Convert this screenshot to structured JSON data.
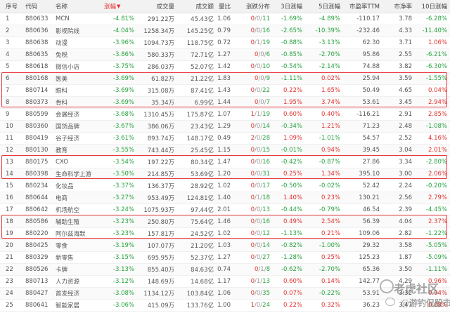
{
  "headers": {
    "no": "序号",
    "code": "代码",
    "name": "名称",
    "change": "涨幅",
    "volume": "成交量",
    "turnover": "成交额",
    "vol_ratio": "量比",
    "distribution": "涨跌分布",
    "change_3d": "3日涨幅",
    "change_5d": "5日涨幅",
    "pe_ttm": "市盈率TTM",
    "pb": "市净率",
    "change_10d": "10日涨幅",
    "sort_indicator": "▼"
  },
  "rows": [
    {
      "no": "1",
      "code": "880633",
      "name": "MCN",
      "change": "-4.81%",
      "volume": "291.22万",
      "turnover": "45.43亿",
      "vol_ratio": "1.06",
      "up": "0",
      "flat": "0",
      "down": "11",
      "c3": "-1.69%",
      "c5": "-4.89%",
      "pe": "-110.17",
      "pb": "3.78",
      "c10": "-6.28%"
    },
    {
      "no": "2",
      "code": "880636",
      "name": "影视院线",
      "change": "-4.04%",
      "volume": "1258.34万",
      "turnover": "145.25亿",
      "vol_ratio": "0.79",
      "up": "0",
      "flat": "0",
      "down": "16",
      "c3": "-2.65%",
      "c5": "-10.39%",
      "pe": "-232.46",
      "pb": "4.33",
      "c10": "-11.40%"
    },
    {
      "no": "3",
      "code": "880638",
      "name": "动漫",
      "change": "-3.96%",
      "volume": "1094.73万",
      "turnover": "118.75亿",
      "vol_ratio": "0.72",
      "up": "0",
      "flat": "1",
      "down": "19",
      "c3": "-0.88%",
      "c5": "-3.13%",
      "pe": "62.30",
      "pb": "3.71",
      "c10": "1.06%"
    },
    {
      "no": "4",
      "code": "880635",
      "name": "免税",
      "change": "-3.86%",
      "volume": "580.33万",
      "turnover": "72.71亿",
      "vol_ratio": "1.27",
      "up": "0",
      "flat": "0",
      "down": "6",
      "c3": "-0.85%",
      "c5": "-2.70%",
      "pe": "95.86",
      "pb": "2.55",
      "c10": "-6.21%"
    },
    {
      "no": "5",
      "code": "880618",
      "name": "微信小店",
      "change": "-3.75%",
      "volume": "286.03万",
      "turnover": "52.07亿",
      "vol_ratio": "1.42",
      "up": "0",
      "flat": "0",
      "down": "10",
      "c3": "-0.54%",
      "c5": "-2.14%",
      "pe": "74.88",
      "pb": "3.82",
      "c10": "-6.30%"
    },
    {
      "no": "6",
      "code": "880168",
      "name": "医美",
      "change": "-3.69%",
      "volume": "61.82万",
      "turnover": "21.22亿",
      "vol_ratio": "1.83",
      "up": "0",
      "flat": "0",
      "down": "9",
      "c3": "-1.11%",
      "c5": "0.02%",
      "pe": "25.94",
      "pb": "3.59",
      "c10": "-1.55%"
    },
    {
      "no": "7",
      "code": "880714",
      "name": "眼科",
      "change": "-3.69%",
      "volume": "315.08万",
      "turnover": "87.41亿",
      "vol_ratio": "1.43",
      "up": "0",
      "flat": "0",
      "down": "22",
      "c3": "0.22%",
      "c5": "1.65%",
      "pe": "50.49",
      "pb": "4.65",
      "c10": "0.04%"
    },
    {
      "no": "8",
      "code": "880373",
      "name": "骨科",
      "change": "-3.69%",
      "volume": "35.34万",
      "turnover": "6.99亿",
      "vol_ratio": "1.44",
      "up": "0",
      "flat": "0",
      "down": "7",
      "c3": "1.95%",
      "c5": "3.74%",
      "pe": "53.61",
      "pb": "3.45",
      "c10": "2.94%"
    },
    {
      "no": "9",
      "code": "880599",
      "name": "会展经济",
      "change": "-3.68%",
      "volume": "1310.45万",
      "turnover": "175.87亿",
      "vol_ratio": "1.07",
      "up": "1",
      "flat": "1",
      "down": "19",
      "c3": "0.60%",
      "c5": "0.40%",
      "pe": "-116.21",
      "pb": "2.91",
      "c10": "2.85%"
    },
    {
      "no": "10",
      "code": "880360",
      "name": "国货品牌",
      "change": "-3.67%",
      "volume": "386.06万",
      "turnover": "23.43亿",
      "vol_ratio": "1.29",
      "up": "0",
      "flat": "0",
      "down": "14",
      "c3": "-0.34%",
      "c5": "1.21%",
      "pe": "71.23",
      "pb": "2.48",
      "c10": "-1.08%"
    },
    {
      "no": "11",
      "code": "880419",
      "name": "谷子经济",
      "change": "-3.61%",
      "volume": "893.74万",
      "turnover": "148.17亿",
      "vol_ratio": "0.49",
      "up": "2",
      "flat": "0",
      "down": "28",
      "c3": "1.09%",
      "c5": "-1.01%",
      "pe": "54.57",
      "pb": "2.52",
      "c10": "4.16%"
    },
    {
      "no": "12",
      "code": "880130",
      "name": "教育",
      "change": "-3.55%",
      "volume": "743.44万",
      "turnover": "25.45亿",
      "vol_ratio": "1.15",
      "up": "0",
      "flat": "0",
      "down": "15",
      "c3": "-0.01%",
      "c5": "0.94%",
      "pe": "39.45",
      "pb": "3.04",
      "c10": "2.01%"
    },
    {
      "no": "13",
      "code": "880175",
      "name": "CXO",
      "change": "-3.54%",
      "volume": "197.22万",
      "turnover": "80.34亿",
      "vol_ratio": "1.47",
      "up": "0",
      "flat": "0",
      "down": "16",
      "c3": "-0.42%",
      "c5": "-0.87%",
      "pe": "27.86",
      "pb": "3.34",
      "c10": "-2.80%"
    },
    {
      "no": "14",
      "code": "880398",
      "name": "生命科学上游",
      "change": "-3.50%",
      "volume": "214.85万",
      "turnover": "53.69亿",
      "vol_ratio": "1.20",
      "up": "0",
      "flat": "0",
      "down": "31",
      "c3": "0.25%",
      "c5": "1.34%",
      "pe": "395.10",
      "pb": "3.00",
      "c10": "2.06%"
    },
    {
      "no": "15",
      "code": "880234",
      "name": "化妆品",
      "change": "-3.37%",
      "volume": "136.37万",
      "turnover": "28.92亿",
      "vol_ratio": "1.02",
      "up": "0",
      "flat": "0",
      "down": "17",
      "c3": "-0.50%",
      "c5": "-0.02%",
      "pe": "52.42",
      "pb": "2.24",
      "c10": "-0.20%"
    },
    {
      "no": "16",
      "code": "880644",
      "name": "电商",
      "change": "-3.27%",
      "volume": "953.49万",
      "turnover": "124.81亿",
      "vol_ratio": "1.40",
      "up": "0",
      "flat": "1",
      "down": "18",
      "c3": "1.40%",
      "c5": "0.23%",
      "pe": "130.21",
      "pb": "2.56",
      "c10": "2.79%"
    },
    {
      "no": "17",
      "code": "880642",
      "name": "机场航空",
      "change": "-3.24%",
      "volume": "1075.93万",
      "turnover": "97.44亿",
      "vol_ratio": "2.01",
      "up": "0",
      "flat": "0",
      "down": "13",
      "c3": "-0.44%",
      "c5": "-0.79%",
      "pe": "46.54",
      "pb": "2.39",
      "c10": "-4.45%"
    },
    {
      "no": "18",
      "code": "880586",
      "name": "辅助生殖",
      "change": "-3.23%",
      "volume": "250.80万",
      "turnover": "75.64亿",
      "vol_ratio": "1.46",
      "up": "0",
      "flat": "0",
      "down": "16",
      "c3": "0.49%",
      "c5": "2.54%",
      "pe": "56.39",
      "pb": "4.04",
      "c10": "2.37%"
    },
    {
      "no": "19",
      "code": "880220",
      "name": "阿尔兹海默",
      "change": "-3.23%",
      "volume": "157.81万",
      "turnover": "24.52亿",
      "vol_ratio": "1.02",
      "up": "0",
      "flat": "0",
      "down": "12",
      "c3": "-1.13%",
      "c5": "0.21%",
      "pe": "109.06",
      "pb": "2.82",
      "c10": "-1.22%"
    },
    {
      "no": "20",
      "code": "880425",
      "name": "零食",
      "change": "-3.19%",
      "volume": "107.07万",
      "turnover": "21.20亿",
      "vol_ratio": "1.03",
      "up": "0",
      "flat": "0",
      "down": "14",
      "c3": "-0.82%",
      "c5": "-1.00%",
      "pe": "29.32",
      "pb": "3.58",
      "c10": "-5.05%"
    },
    {
      "no": "21",
      "code": "880329",
      "name": "新零售",
      "change": "-3.15%",
      "volume": "695.95万",
      "turnover": "52.37亿",
      "vol_ratio": "1.27",
      "up": "0",
      "flat": "0",
      "down": "27",
      "c3": "-1.28%",
      "c5": "0.25%",
      "pe": "125.23",
      "pb": "1.87",
      "c10": "-5.09%"
    },
    {
      "no": "22",
      "code": "880526",
      "name": "卡牌",
      "change": "-3.13%",
      "volume": "855.40万",
      "turnover": "84.63亿",
      "vol_ratio": "0.74",
      "up": "0",
      "flat": "1",
      "down": "8",
      "c3": "-0.62%",
      "c5": "-2.70%",
      "pe": "65.36",
      "pb": "3.50",
      "c10": "-1.11%"
    },
    {
      "no": "23",
      "code": "880713",
      "name": "人力资源",
      "change": "-3.12%",
      "volume": "148.69万",
      "turnover": "14.68亿",
      "vol_ratio": "1.17",
      "up": "0",
      "flat": "1",
      "down": "13",
      "c3": "0.60%",
      "c5": "0.14%",
      "pe": "142.77",
      "pb": "4.29",
      "c10": "0.96%"
    },
    {
      "no": "24",
      "code": "880427",
      "name": "首发经济",
      "change": "-3.08%",
      "volume": "1134.12万",
      "turnover": "103.84亿",
      "vol_ratio": "1.06",
      "up": "0",
      "flat": "0",
      "down": "35",
      "c3": "0.07%",
      "c5": "-0.22%",
      "pe": "53.91",
      "pb": "3.32",
      "c10": "0.94%"
    },
    {
      "no": "25",
      "code": "880641",
      "name": "智能家居",
      "change": "-3.06%",
      "volume": "415.09万",
      "turnover": "133.76亿",
      "vol_ratio": "1.00",
      "up": "1",
      "flat": "0",
      "down": "24",
      "c3": "0.22%",
      "c5": "0.32%",
      "pe": "36.23",
      "pb": "3.47",
      "c10": "0.08%"
    }
  ],
  "watermark": {
    "line1": "老虎社区",
    "line2": "@游钓侃股市"
  }
}
